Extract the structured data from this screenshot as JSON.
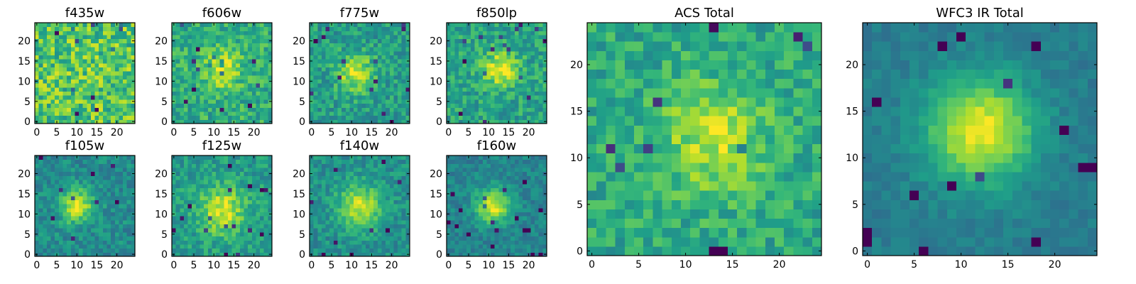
{
  "chart_data": [
    {
      "type": "heatmap",
      "title": "f435w",
      "image_size": [
        25,
        25
      ],
      "xticks": [
        0,
        5,
        10,
        15,
        20
      ],
      "yticks": [
        0,
        5,
        10,
        15,
        20
      ],
      "colormap": "viridis",
      "blob": {
        "amplitude": 0.05,
        "center": [
          15,
          12
        ],
        "sigma": 3,
        "noise": 0.22,
        "base": 0.72,
        "seed": 11
      }
    },
    {
      "type": "heatmap",
      "title": "f606w",
      "image_size": [
        25,
        25
      ],
      "xticks": [
        0,
        5,
        10,
        15,
        20
      ],
      "yticks": [
        0,
        5,
        10,
        15,
        20
      ],
      "colormap": "viridis",
      "blob": {
        "amplitude": 0.3,
        "center": [
          12,
          13
        ],
        "sigma": 3.5,
        "noise": 0.16,
        "base": 0.62,
        "seed": 23
      }
    },
    {
      "type": "heatmap",
      "title": "f775w",
      "image_size": [
        25,
        25
      ],
      "xticks": [
        0,
        5,
        10,
        15,
        20
      ],
      "yticks": [
        0,
        5,
        10,
        15,
        20
      ],
      "colormap": "viridis",
      "blob": {
        "amplitude": 0.38,
        "center": [
          11,
          12
        ],
        "sigma": 3.2,
        "noise": 0.15,
        "base": 0.55,
        "seed": 37
      }
    },
    {
      "type": "heatmap",
      "title": "f850lp",
      "image_size": [
        25,
        25
      ],
      "xticks": [
        0,
        5,
        10,
        15,
        20
      ],
      "yticks": [
        0,
        5,
        10,
        15,
        20
      ],
      "colormap": "viridis",
      "blob": {
        "amplitude": 0.4,
        "center": [
          13,
          13
        ],
        "sigma": 3,
        "noise": 0.15,
        "base": 0.58,
        "seed": 41
      }
    },
    {
      "type": "heatmap",
      "title": "f105w",
      "image_size": [
        25,
        25
      ],
      "xticks": [
        0,
        5,
        10,
        15,
        20
      ],
      "yticks": [
        0,
        5,
        10,
        15,
        20
      ],
      "colormap": "viridis",
      "blob": {
        "amplitude": 0.45,
        "center": [
          10,
          12
        ],
        "sigma": 3,
        "noise": 0.12,
        "base": 0.48,
        "seed": 53
      }
    },
    {
      "type": "heatmap",
      "title": "f125w",
      "image_size": [
        25,
        25
      ],
      "xticks": [
        0,
        5,
        10,
        15,
        20
      ],
      "yticks": [
        0,
        5,
        10,
        15,
        20
      ],
      "colormap": "viridis",
      "blob": {
        "amplitude": 0.4,
        "center": [
          12,
          11
        ],
        "sigma": 4,
        "noise": 0.13,
        "base": 0.55,
        "seed": 67
      }
    },
    {
      "type": "heatmap",
      "title": "f140w",
      "image_size": [
        25,
        25
      ],
      "xticks": [
        0,
        5,
        10,
        15,
        20
      ],
      "yticks": [
        0,
        5,
        10,
        15,
        20
      ],
      "colormap": "viridis",
      "blob": {
        "amplitude": 0.42,
        "center": [
          12,
          12
        ],
        "sigma": 3.8,
        "noise": 0.12,
        "base": 0.5,
        "seed": 79
      }
    },
    {
      "type": "heatmap",
      "title": "f160w",
      "image_size": [
        25,
        25
      ],
      "xticks": [
        0,
        5,
        10,
        15,
        20
      ],
      "yticks": [
        0,
        5,
        10,
        15,
        20
      ],
      "colormap": "viridis",
      "blob": {
        "amplitude": 0.5,
        "center": [
          11,
          12
        ],
        "sigma": 3,
        "noise": 0.1,
        "base": 0.45,
        "seed": 83
      }
    },
    {
      "type": "heatmap",
      "title": "ACS Total",
      "image_size": [
        25,
        25
      ],
      "xticks": [
        0,
        5,
        10,
        15,
        20
      ],
      "yticks": [
        0,
        5,
        10,
        15,
        20
      ],
      "colormap": "viridis",
      "blob": {
        "amplitude": 0.3,
        "center": [
          13,
          12
        ],
        "sigma": 4,
        "noise": 0.14,
        "base": 0.6,
        "seed": 97
      }
    },
    {
      "type": "heatmap",
      "title": "WFC3 IR Total",
      "image_size": [
        25,
        25
      ],
      "xticks": [
        0,
        5,
        10,
        15,
        20
      ],
      "yticks": [
        0,
        5,
        10,
        15,
        20
      ],
      "colormap": "viridis",
      "blob": {
        "amplitude": 0.55,
        "center": [
          12,
          13
        ],
        "sigma": 4,
        "noise": 0.06,
        "base": 0.42,
        "seed": 101
      }
    }
  ]
}
